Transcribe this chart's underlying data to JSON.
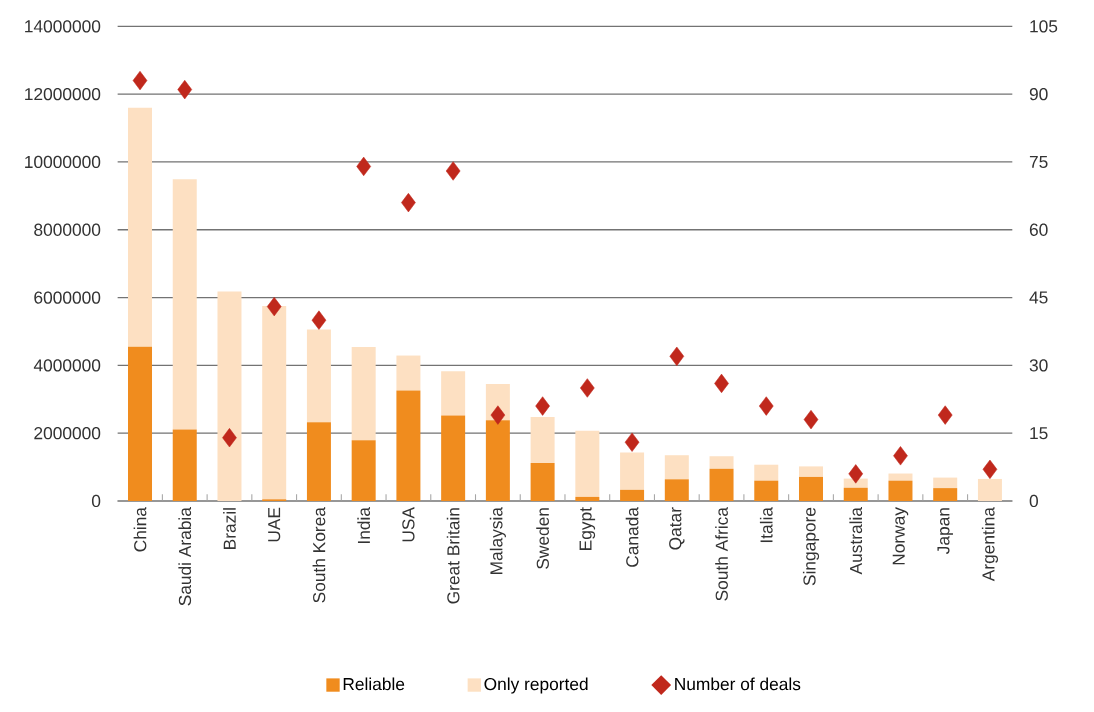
{
  "chart_data": {
    "type": "bar",
    "stacked": true,
    "categories": [
      "China",
      "Saudi Arabia",
      "Brazil",
      "UAE",
      "South Korea",
      "India",
      "USA",
      "Great Britain",
      "Malaysia",
      "Sweden",
      "Egypt",
      "Canada",
      "Qatar",
      "South Africa",
      "Italia",
      "Singapore",
      "Australia",
      "Norway",
      "Japan",
      "Argentina"
    ],
    "series": [
      {
        "name": "Reliable",
        "color": "#f08c1e",
        "values": [
          4550000,
          2110000,
          0,
          50000,
          2320000,
          1790000,
          3260000,
          2520000,
          2380000,
          1120000,
          120000,
          330000,
          640000,
          950000,
          600000,
          710000,
          390000,
          600000,
          380000,
          0
        ]
      },
      {
        "name": "Only reported",
        "color": "#fde0c2",
        "values": [
          7050000,
          7380000,
          6180000,
          5700000,
          2740000,
          2750000,
          1030000,
          1310000,
          1070000,
          1360000,
          1950000,
          1100000,
          710000,
          370000,
          470000,
          310000,
          270000,
          210000,
          310000,
          650000
        ]
      },
      {
        "name": "Number of deals",
        "type": "scatter",
        "axis": "y2",
        "marker": "diamond",
        "color": "#c0281c",
        "values": [
          93,
          91,
          14,
          43,
          40,
          74,
          66,
          73,
          19,
          21,
          25,
          13,
          32,
          26,
          21,
          18,
          6,
          10,
          19,
          7
        ]
      }
    ],
    "ylim": [
      0,
      14000000
    ],
    "yticks": [
      0,
      2000000,
      4000000,
      6000000,
      8000000,
      10000000,
      12000000,
      14000000
    ],
    "y2lim": [
      0,
      105
    ],
    "y2ticks": [
      0,
      15,
      30,
      45,
      60,
      75,
      90,
      105
    ],
    "grid": "y",
    "legend": "bottom"
  }
}
